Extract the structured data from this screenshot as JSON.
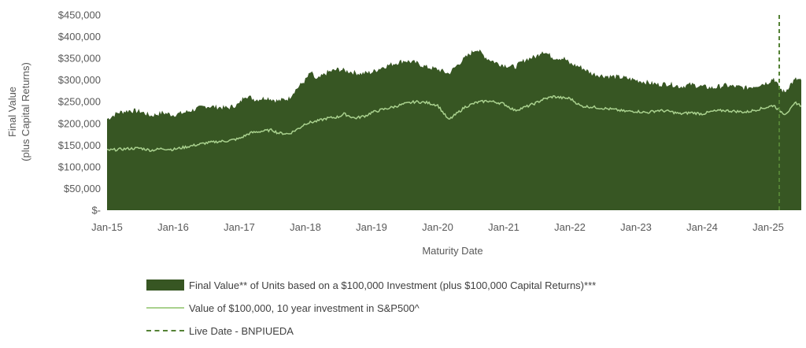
{
  "chart_data": {
    "type": "area",
    "title": "",
    "xlabel": "Maturity Date",
    "ylabel": "Final Value\n(plus Capital Returns)",
    "x_start": "Jan-15",
    "x_end": "Jul-25",
    "ylim": [
      0,
      450000
    ],
    "y_ticks": [
      {
        "value": 450000,
        "label": "$450,000"
      },
      {
        "value": 400000,
        "label": "$400,000"
      },
      {
        "value": 350000,
        "label": "$350,000"
      },
      {
        "value": 300000,
        "label": "$300,000"
      },
      {
        "value": 250000,
        "label": "$250,000"
      },
      {
        "value": 200000,
        "label": "$200,000"
      },
      {
        "value": 150000,
        "label": "$150,000"
      },
      {
        "value": 100000,
        "label": "$100,000"
      },
      {
        "value": 50000,
        "label": "$50,000"
      },
      {
        "value": 0,
        "label": "$-"
      }
    ],
    "x_ticks": [
      "Jan-15",
      "Jan-16",
      "Jan-17",
      "Jan-18",
      "Jan-19",
      "Jan-20",
      "Jan-21",
      "Jan-22",
      "Jan-23",
      "Jan-24",
      "Jan-25"
    ],
    "grid": false,
    "legend_position": "bottom",
    "series": [
      {
        "name": "Final Value** of Units based on a $100,000 Investment (plus $100,000 Capital Returns)***",
        "kind": "area",
        "color": "#375623",
        "points": [
          [
            "Jan-15",
            210000
          ],
          [
            "Mar-15",
            225000
          ],
          [
            "May-15",
            230000
          ],
          [
            "Jul-15",
            228000
          ],
          [
            "Sep-15",
            218000
          ],
          [
            "Nov-15",
            225000
          ],
          [
            "Jan-16",
            220000
          ],
          [
            "Mar-16",
            225000
          ],
          [
            "May-16",
            233000
          ],
          [
            "Jul-16",
            240000
          ],
          [
            "Sep-16",
            238000
          ],
          [
            "Nov-16",
            236000
          ],
          [
            "Jan-17",
            245000
          ],
          [
            "Feb-17",
            265000
          ],
          [
            "Apr-17",
            255000
          ],
          [
            "Jun-17",
            260000
          ],
          [
            "Aug-17",
            252000
          ],
          [
            "Oct-17",
            258000
          ],
          [
            "Nov-17",
            275000
          ],
          [
            "Jan-18",
            300000
          ],
          [
            "Feb-18",
            318000
          ],
          [
            "Mar-18",
            300000
          ],
          [
            "May-18",
            318000
          ],
          [
            "Jul-18",
            325000
          ],
          [
            "Sep-18",
            320000
          ],
          [
            "Nov-18",
            315000
          ],
          [
            "Jan-19",
            318000
          ],
          [
            "Mar-19",
            330000
          ],
          [
            "May-19",
            338000
          ],
          [
            "Jul-19",
            345000
          ],
          [
            "Sep-19",
            340000
          ],
          [
            "Nov-19",
            330000
          ],
          [
            "Jan-20",
            325000
          ],
          [
            "Mar-20",
            315000
          ],
          [
            "May-20",
            340000
          ],
          [
            "Jul-20",
            362000
          ],
          [
            "Aug-20",
            372000
          ],
          [
            "Oct-20",
            350000
          ],
          [
            "Dec-20",
            338000
          ],
          [
            "Jan-21",
            335000
          ],
          [
            "Mar-21",
            330000
          ],
          [
            "May-21",
            348000
          ],
          [
            "Jul-21",
            355000
          ],
          [
            "Aug-21",
            368000
          ],
          [
            "Oct-21",
            352000
          ],
          [
            "Dec-21",
            350000
          ],
          [
            "Jan-22",
            338000
          ],
          [
            "Mar-22",
            330000
          ],
          [
            "May-22",
            315000
          ],
          [
            "Jul-22",
            310000
          ],
          [
            "Sep-22",
            308000
          ],
          [
            "Nov-22",
            305000
          ],
          [
            "Jan-23",
            300000
          ],
          [
            "Mar-23",
            295000
          ],
          [
            "May-23",
            290000
          ],
          [
            "Jul-23",
            292000
          ],
          [
            "Sep-23",
            285000
          ],
          [
            "Nov-23",
            290000
          ],
          [
            "Jan-24",
            285000
          ],
          [
            "Mar-24",
            282000
          ],
          [
            "May-24",
            288000
          ],
          [
            "Jul-24",
            285000
          ],
          [
            "Sep-24",
            282000
          ],
          [
            "Nov-24",
            288000
          ],
          [
            "Jan-25",
            295000
          ],
          [
            "Feb-25",
            305000
          ],
          [
            "Mar-25",
            282000
          ],
          [
            "Apr-25",
            272000
          ],
          [
            "May-25",
            290000
          ],
          [
            "Jun-25",
            302000
          ],
          [
            "Jul-25",
            300000
          ]
        ]
      },
      {
        "name": "Value of $100,000, 10 year investment in S&P500^",
        "kind": "line",
        "color": "#A9D18E",
        "points": [
          [
            "Jan-15",
            138000
          ],
          [
            "Mar-15",
            140000
          ],
          [
            "May-15",
            142000
          ],
          [
            "Jul-15",
            143000
          ],
          [
            "Sep-15",
            138000
          ],
          [
            "Nov-15",
            142000
          ],
          [
            "Jan-16",
            140000
          ],
          [
            "Mar-16",
            145000
          ],
          [
            "May-16",
            150000
          ],
          [
            "Jul-16",
            155000
          ],
          [
            "Sep-16",
            158000
          ],
          [
            "Nov-16",
            160000
          ],
          [
            "Jan-17",
            165000
          ],
          [
            "Mar-17",
            178000
          ],
          [
            "May-17",
            182000
          ],
          [
            "Jul-17",
            185000
          ],
          [
            "Aug-17",
            178000
          ],
          [
            "Oct-17",
            176000
          ],
          [
            "Dec-17",
            190000
          ],
          [
            "Jan-18",
            200000
          ],
          [
            "Mar-18",
            205000
          ],
          [
            "May-18",
            212000
          ],
          [
            "Jul-18",
            215000
          ],
          [
            "Aug-18",
            222000
          ],
          [
            "Oct-18",
            212000
          ],
          [
            "Dec-18",
            218000
          ],
          [
            "Jan-19",
            225000
          ],
          [
            "Mar-19",
            232000
          ],
          [
            "May-19",
            238000
          ],
          [
            "Jul-19",
            245000
          ],
          [
            "Sep-19",
            250000
          ],
          [
            "Nov-19",
            248000
          ],
          [
            "Jan-20",
            242000
          ],
          [
            "Mar-20",
            208000
          ],
          [
            "Apr-20",
            218000
          ],
          [
            "Jun-20",
            238000
          ],
          [
            "Aug-20",
            248000
          ],
          [
            "Oct-20",
            252000
          ],
          [
            "Dec-20",
            248000
          ],
          [
            "Jan-21",
            245000
          ],
          [
            "Mar-21",
            230000
          ],
          [
            "May-21",
            238000
          ],
          [
            "Jul-21",
            248000
          ],
          [
            "Aug-21",
            255000
          ],
          [
            "Oct-21",
            262000
          ],
          [
            "Dec-21",
            258000
          ],
          [
            "Jan-22",
            258000
          ],
          [
            "Mar-22",
            240000
          ],
          [
            "May-22",
            238000
          ],
          [
            "Jul-22",
            235000
          ],
          [
            "Sep-22",
            232000
          ],
          [
            "Nov-22",
            228000
          ],
          [
            "Jan-23",
            228000
          ],
          [
            "Mar-23",
            225000
          ],
          [
            "May-23",
            230000
          ],
          [
            "Jul-23",
            228000
          ],
          [
            "Sep-23",
            222000
          ],
          [
            "Nov-23",
            225000
          ],
          [
            "Jan-24",
            222000
          ],
          [
            "Mar-24",
            228000
          ],
          [
            "May-24",
            230000
          ],
          [
            "Jul-24",
            228000
          ],
          [
            "Sep-24",
            226000
          ],
          [
            "Nov-24",
            232000
          ],
          [
            "Jan-25",
            238000
          ],
          [
            "Feb-25",
            242000
          ],
          [
            "Mar-25",
            230000
          ],
          [
            "Apr-25",
            222000
          ],
          [
            "May-25",
            232000
          ],
          [
            "Jun-25",
            248000
          ],
          [
            "Jul-25",
            240000
          ]
        ]
      },
      {
        "name": "Live Date - BNPIUEDA",
        "kind": "vline",
        "color": "#548235",
        "x": "Mar-25"
      }
    ]
  }
}
